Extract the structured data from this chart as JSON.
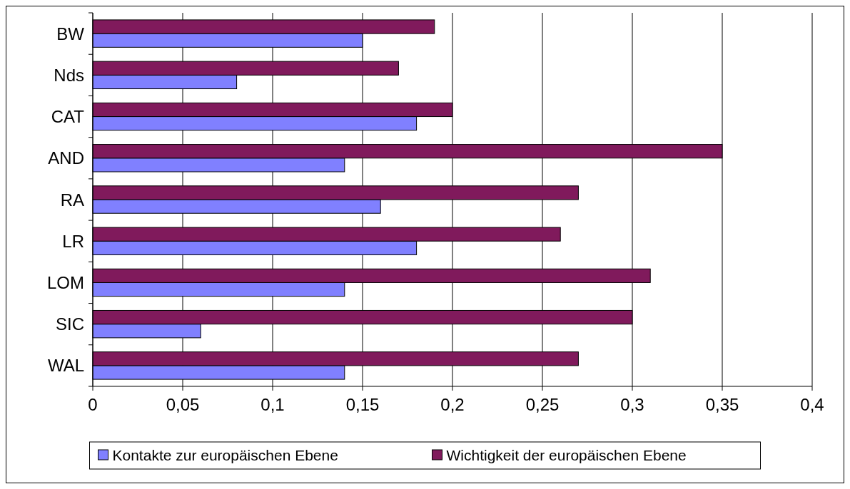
{
  "chart_data": {
    "type": "bar",
    "orientation": "horizontal",
    "categories": [
      "BW",
      "Nds",
      "CAT",
      "AND",
      "RA",
      "LR",
      "LOM",
      "SIC",
      "WAL"
    ],
    "series": [
      {
        "name": "Kontakte zur europäischen Ebene",
        "color": "#8080ff",
        "values": [
          0.15,
          0.08,
          0.18,
          0.14,
          0.16,
          0.18,
          0.14,
          0.06,
          0.14
        ]
      },
      {
        "name": "Wichtigkeit der europäischen Ebene",
        "color": "#801a5c",
        "values": [
          0.19,
          0.17,
          0.2,
          0.35,
          0.27,
          0.26,
          0.31,
          0.3,
          0.27
        ]
      }
    ],
    "xlim": [
      0,
      0.4
    ],
    "xticks": [
      {
        "value": 0,
        "label": "0"
      },
      {
        "value": 0.05,
        "label": "0,05"
      },
      {
        "value": 0.1,
        "label": "0,1"
      },
      {
        "value": 0.15,
        "label": "0,15"
      },
      {
        "value": 0.2,
        "label": "0,2"
      },
      {
        "value": 0.25,
        "label": "0,25"
      },
      {
        "value": 0.3,
        "label": "0,3"
      },
      {
        "value": 0.35,
        "label": "0,35"
      },
      {
        "value": 0.4,
        "label": "0,4"
      }
    ],
    "grid": "x",
    "legend": "bottom"
  }
}
